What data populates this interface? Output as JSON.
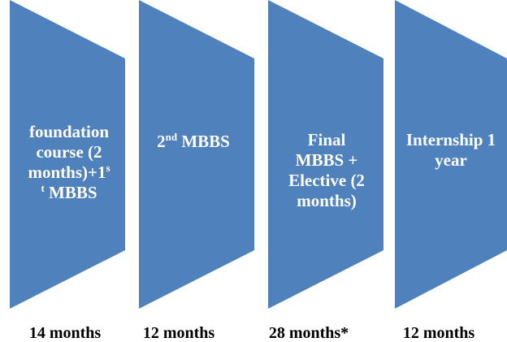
{
  "stages": [
    {
      "parts": [
        {
          "text": "foundation course (2 months)+1"
        },
        {
          "text": "s",
          "sup": true
        },
        {
          "text": "t",
          "sup": true
        },
        {
          "text": " MBBS"
        }
      ],
      "duration": "14 months"
    },
    {
      "parts": [
        {
          "text": "2"
        },
        {
          "text": "nd",
          "sup": true
        },
        {
          "text": " MBBS"
        }
      ],
      "duration": "12 months"
    },
    {
      "parts": [
        {
          "text": "Final MBBS + Elective (2 months)"
        }
      ],
      "duration": "28 months*"
    },
    {
      "parts": [
        {
          "text": "Internship 1 year"
        }
      ],
      "duration": "12 months"
    }
  ],
  "colors": {
    "stage_fill": "#4f81bd",
    "stage_text": "#ffffff",
    "duration_text": "#000000"
  }
}
